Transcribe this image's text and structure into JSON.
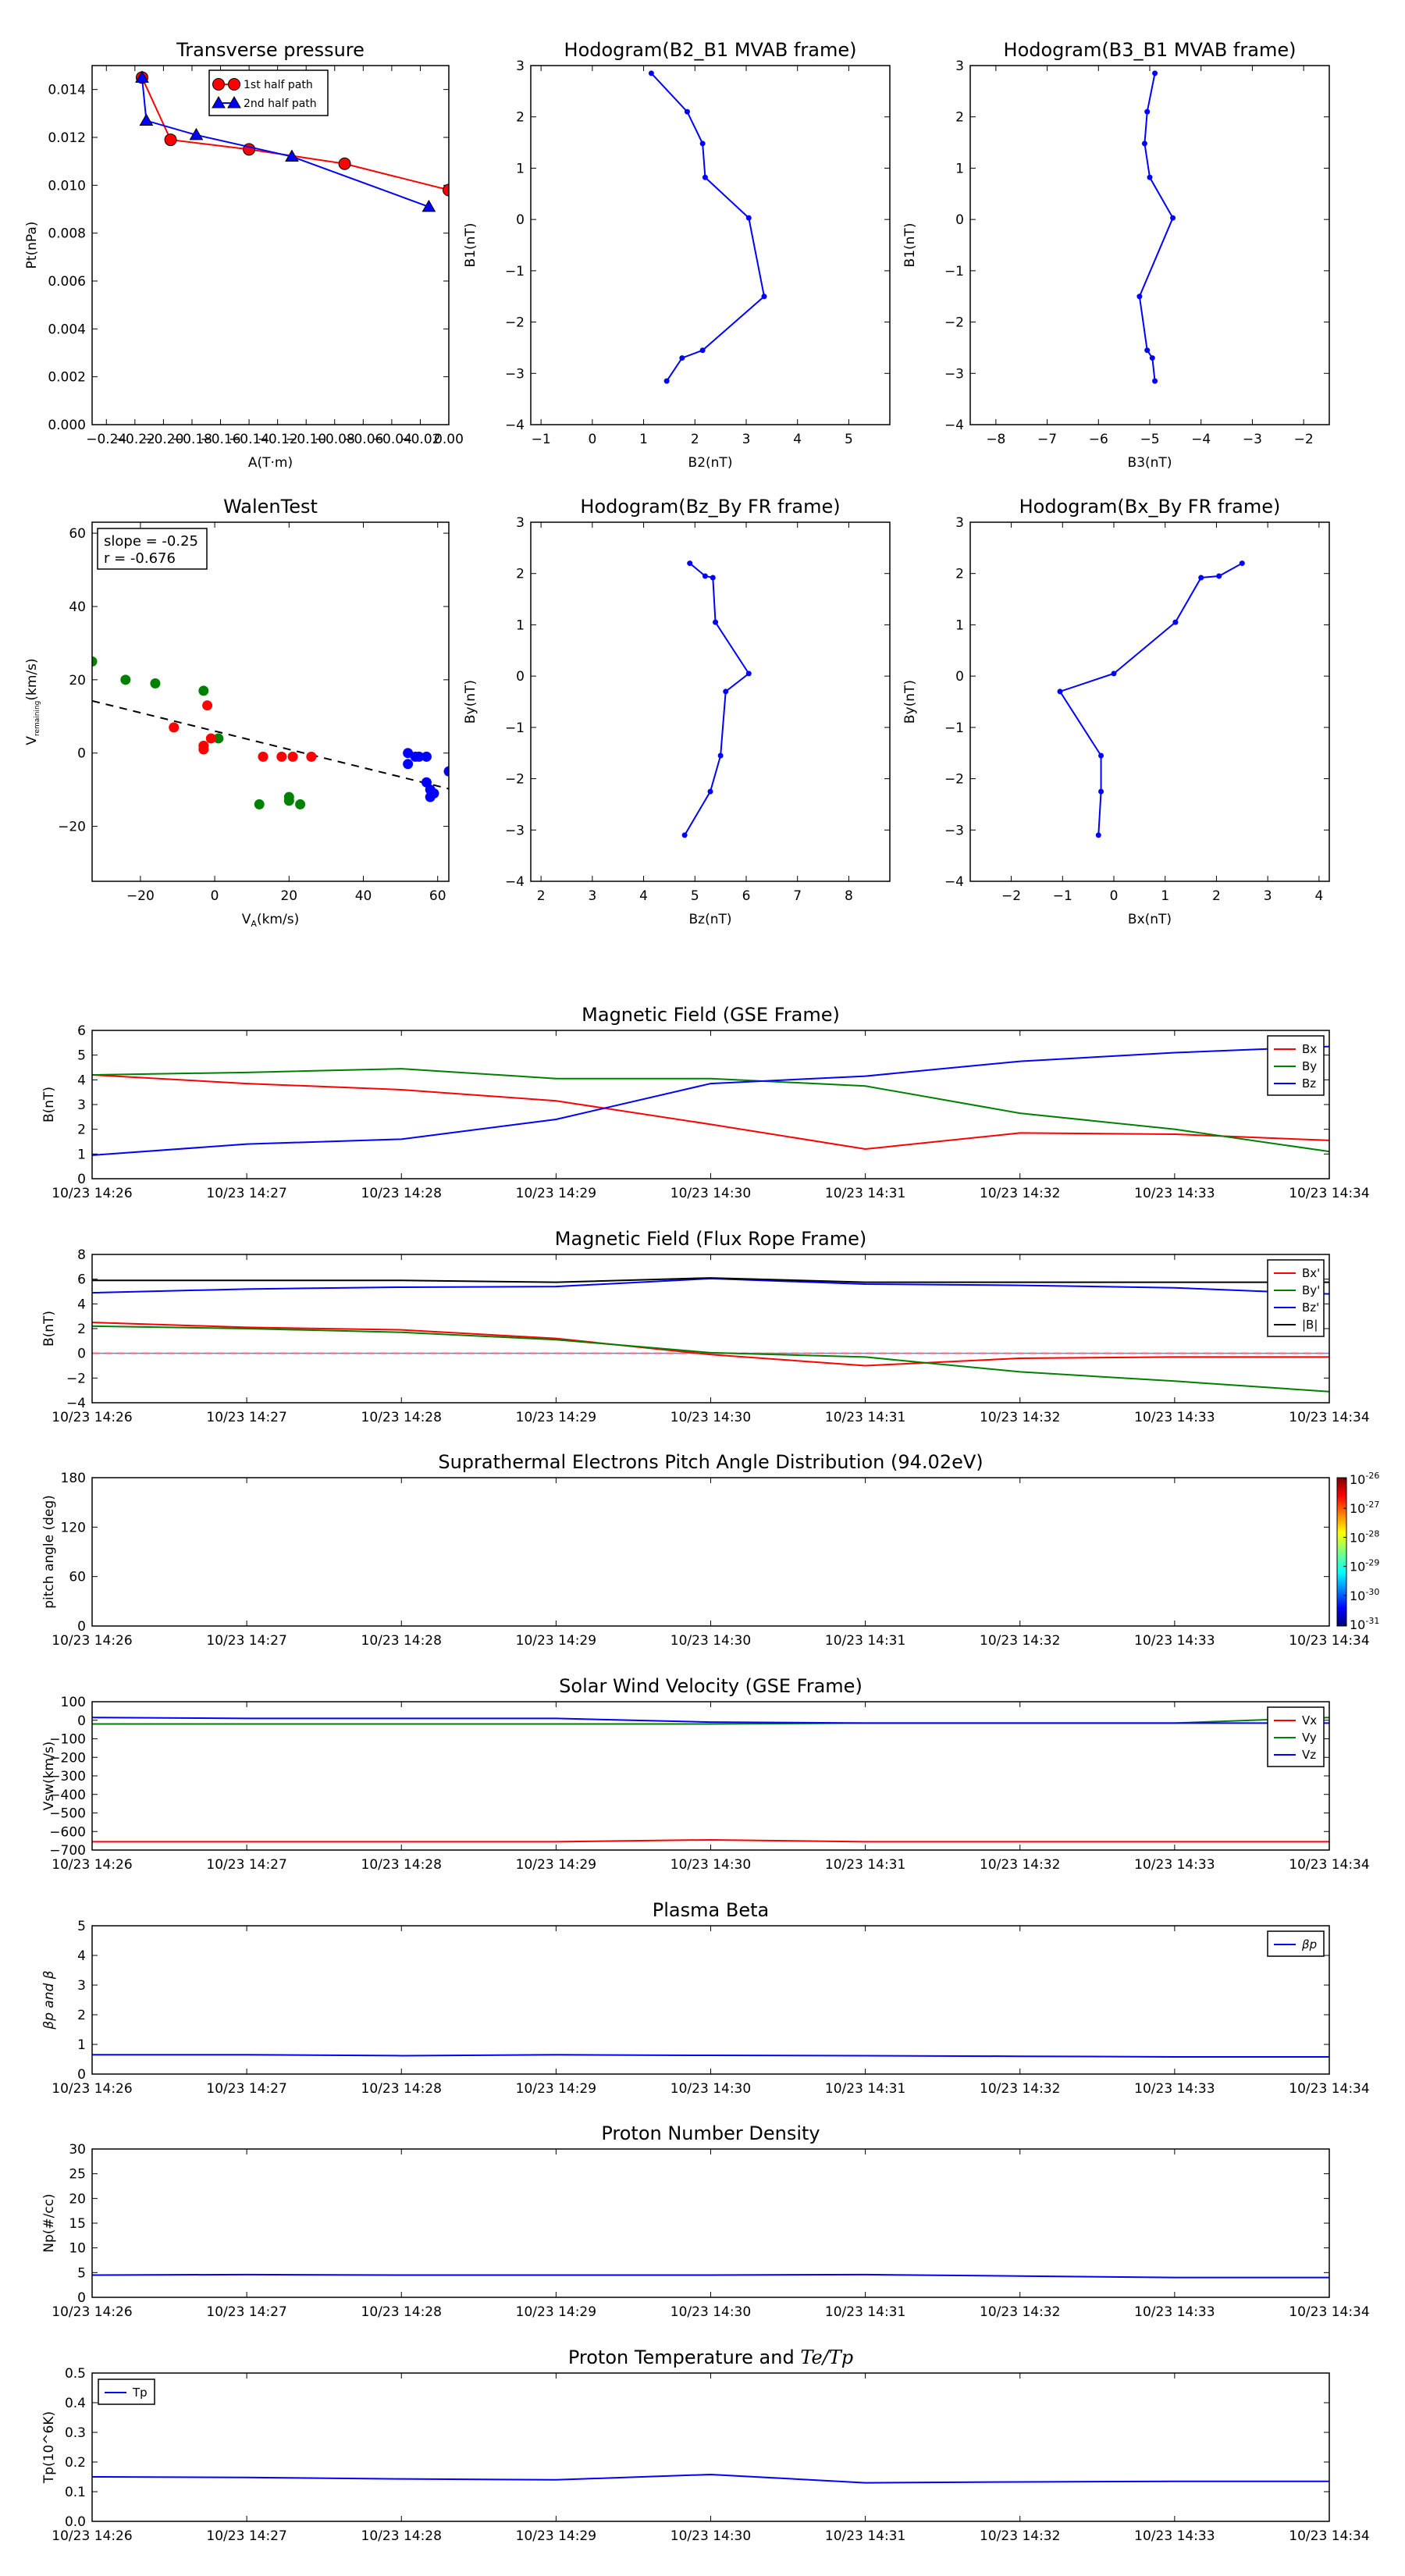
{
  "colors": {
    "red": "#ff0000",
    "green": "#008000",
    "blue": "#0000ff",
    "black": "#000000"
  },
  "time_ticks": [
    "10/23 14:26",
    "10/23 14:27",
    "10/23 14:28",
    "10/23 14:29",
    "10/23 14:30",
    "10/23 14:31",
    "10/23 14:32",
    "10/23 14:33",
    "10/23 14:34"
  ],
  "chart_data": [
    {
      "id": "transverse-pressure",
      "type": "line",
      "title": "Transverse pressure",
      "xlabel": "A(T·m)",
      "ylabel": "Pt(nPa)",
      "xlim": [
        -0.25,
        0.0
      ],
      "ylim": [
        0.0,
        0.015
      ],
      "xticks": [
        -0.24,
        -0.22,
        -0.2,
        -0.18,
        -0.16,
        -0.14,
        -0.12,
        -0.1,
        -0.08,
        -0.06,
        -0.04,
        -0.02,
        0.0
      ],
      "xtick_labels": [
        "−0.24",
        "−0.22",
        "−0.20",
        "−0.18",
        "−0.16",
        "−0.14",
        "−0.12",
        "−0.10",
        "−0.08",
        "−0.06",
        "−0.04",
        "−0.02",
        "0.00"
      ],
      "yticks": [
        0,
        0.002,
        0.004,
        0.006,
        0.008,
        0.01,
        0.012,
        0.014
      ],
      "ytick_labels": [
        "0.000",
        "0.002",
        "0.004",
        "0.006",
        "0.008",
        "0.010",
        "0.012",
        "0.014"
      ],
      "legend": {
        "placement": "top-center",
        "entries": [
          "1st half path",
          "2nd half path"
        ]
      },
      "series": [
        {
          "name": "1st half path",
          "color": "red",
          "marker": "circle",
          "x": [
            -0.215,
            -0.195,
            -0.14,
            -0.073,
            0.0
          ],
          "y": [
            0.0145,
            0.0119,
            0.0115,
            0.0109,
            0.0098
          ]
        },
        {
          "name": "2nd half path",
          "color": "blue",
          "marker": "triangle",
          "x": [
            -0.215,
            -0.212,
            -0.177,
            -0.11,
            -0.014
          ],
          "y": [
            0.0145,
            0.0127,
            0.0121,
            0.0112,
            0.0091
          ]
        }
      ]
    },
    {
      "id": "hodogram-b2-b1",
      "type": "line",
      "title": "Hodogram(B2_B1 MVAB frame)",
      "xlabel": "B2(nT)",
      "ylabel": "B1(nT)",
      "xlim": [
        -1.2,
        5.8
      ],
      "ylim": [
        -4,
        3
      ],
      "xticks": [
        -1,
        0,
        1,
        2,
        3,
        4,
        5
      ],
      "xtick_labels": [
        "−1",
        "0",
        "1",
        "2",
        "3",
        "4",
        "5"
      ],
      "yticks": [
        -4,
        -3,
        -2,
        -1,
        0,
        1,
        2,
        3
      ],
      "ytick_labels": [
        "−4",
        "−3",
        "−2",
        "−1",
        "0",
        "1",
        "2",
        "3"
      ],
      "series": [
        {
          "color": "blue",
          "marker": "dot",
          "x": [
            1.15,
            1.85,
            2.15,
            2.2,
            3.05,
            3.35,
            2.15,
            1.75,
            1.45
          ],
          "y": [
            2.85,
            2.1,
            1.48,
            0.82,
            0.03,
            -1.5,
            -2.55,
            -2.7,
            -3.15
          ]
        }
      ]
    },
    {
      "id": "hodogram-b3-b1",
      "type": "line",
      "title": "Hodogram(B3_B1 MVAB frame)",
      "xlabel": "B3(nT)",
      "ylabel": "B1(nT)",
      "xlim": [
        -8.5,
        -1.5
      ],
      "ylim": [
        -4,
        3
      ],
      "xticks": [
        -8,
        -7,
        -6,
        -5,
        -4,
        -3,
        -2
      ],
      "xtick_labels": [
        "−8",
        "−7",
        "−6",
        "−5",
        "−4",
        "−3",
        "−2"
      ],
      "yticks": [
        -4,
        -3,
        -2,
        -1,
        0,
        1,
        2,
        3
      ],
      "ytick_labels": [
        "−4",
        "−3",
        "−2",
        "−1",
        "0",
        "1",
        "2",
        "3"
      ],
      "series": [
        {
          "color": "blue",
          "marker": "dot",
          "x": [
            -4.9,
            -5.05,
            -5.1,
            -5.0,
            -4.55,
            -5.2,
            -5.05,
            -4.95,
            -4.9
          ],
          "y": [
            2.85,
            2.1,
            1.48,
            0.82,
            0.03,
            -1.5,
            -2.55,
            -2.7,
            -3.15
          ]
        }
      ]
    },
    {
      "id": "walen-test",
      "type": "scatter",
      "title": "WalenTest",
      "xlabel": "V",
      "xlabel_sub": "A",
      "xlabel_unit": "(km/s)",
      "ylabel": "V",
      "ylabel_sub": "remaining",
      "ylabel_unit": "(km/s)",
      "xlim": [
        -33,
        63
      ],
      "ylim": [
        -35,
        63
      ],
      "xticks": [
        -20,
        0,
        20,
        40,
        60
      ],
      "xtick_labels": [
        "−20",
        "0",
        "20",
        "40",
        "60"
      ],
      "yticks": [
        -20,
        0,
        20,
        40,
        60
      ],
      "ytick_labels": [
        "−20",
        "0",
        "20",
        "40",
        "60"
      ],
      "annotation": [
        "slope = -0.25",
        "r = -0.676"
      ],
      "fit_line": {
        "slope": -0.25,
        "intercept": 6.0
      },
      "series": [
        {
          "color": "green",
          "x": [
            -33,
            -24,
            -16,
            -3,
            1,
            12,
            20,
            20,
            23
          ],
          "y": [
            25,
            20,
            19,
            17,
            4,
            -14,
            -12,
            -13,
            -14
          ]
        },
        {
          "color": "red",
          "x": [
            -11,
            -3,
            -3,
            -1,
            13,
            18,
            21,
            26,
            -2
          ],
          "y": [
            7,
            1,
            2,
            4,
            -1,
            -1,
            -1,
            -1,
            13
          ]
        },
        {
          "color": "blue",
          "x": [
            52,
            52,
            54,
            55,
            57,
            57,
            58,
            58,
            59,
            63
          ],
          "y": [
            0,
            -3,
            -1,
            -1,
            -1,
            -8,
            -10,
            -12,
            -11,
            -5
          ]
        }
      ]
    },
    {
      "id": "hodogram-bz-by",
      "type": "line",
      "title": "Hodogram(Bz_By FR frame)",
      "xlabel": "Bz(nT)",
      "ylabel": "By(nT)",
      "xlim": [
        1.8,
        8.8
      ],
      "ylim": [
        -4,
        3
      ],
      "xticks": [
        2,
        3,
        4,
        5,
        6,
        7,
        8
      ],
      "xtick_labels": [
        "2",
        "3",
        "4",
        "5",
        "6",
        "7",
        "8"
      ],
      "yticks": [
        -4,
        -3,
        -2,
        -1,
        0,
        1,
        2,
        3
      ],
      "ytick_labels": [
        "−4",
        "−3",
        "−2",
        "−1",
        "0",
        "1",
        "2",
        "3"
      ],
      "series": [
        {
          "color": "blue",
          "marker": "dot",
          "x": [
            4.9,
            5.2,
            5.35,
            5.4,
            6.05,
            5.6,
            5.5,
            5.3,
            4.8
          ],
          "y": [
            2.2,
            1.95,
            1.92,
            1.05,
            0.05,
            -0.3,
            -1.55,
            -2.25,
            -3.1
          ]
        }
      ]
    },
    {
      "id": "hodogram-bx-by",
      "type": "line",
      "title": "Hodogram(Bx_By FR frame)",
      "xlabel": "Bx(nT)",
      "ylabel": "By(nT)",
      "xlim": [
        -2.8,
        4.2
      ],
      "ylim": [
        -4,
        3
      ],
      "xticks": [
        -2,
        -1,
        0,
        1,
        2,
        3,
        4
      ],
      "xtick_labels": [
        "−2",
        "−1",
        "0",
        "1",
        "2",
        "3",
        "4"
      ],
      "yticks": [
        -4,
        -3,
        -2,
        -1,
        0,
        1,
        2,
        3
      ],
      "ytick_labels": [
        "−4",
        "−3",
        "−2",
        "−1",
        "0",
        "1",
        "2",
        "3"
      ],
      "series": [
        {
          "color": "blue",
          "marker": "dot",
          "x": [
            2.5,
            2.05,
            1.7,
            1.2,
            0.0,
            -1.05,
            -0.25,
            -0.25,
            -0.3
          ],
          "y": [
            2.2,
            1.95,
            1.92,
            1.05,
            0.05,
            -0.3,
            -1.55,
            -2.25,
            -3.1
          ]
        }
      ]
    },
    {
      "id": "magnetic-field-gse",
      "type": "line",
      "title": "Magnetic Field (GSE Frame)",
      "ylabel": "B(nT)",
      "xlim": [
        0,
        8
      ],
      "ylim": [
        0,
        6
      ],
      "yticks": [
        0,
        1,
        2,
        3,
        4,
        5,
        6
      ],
      "ytick_labels": [
        "0",
        "1",
        "2",
        "3",
        "4",
        "5",
        "6"
      ],
      "legend": {
        "placement": "top-right",
        "entries": [
          "Bx",
          "By",
          "Bz"
        ]
      },
      "series": [
        {
          "name": "Bx",
          "color": "red",
          "x": [
            0,
            1,
            2,
            3,
            4,
            5,
            6,
            7,
            8
          ],
          "y": [
            4.2,
            3.85,
            3.6,
            3.15,
            2.2,
            1.2,
            1.85,
            1.8,
            1.55
          ]
        },
        {
          "name": "By",
          "color": "green",
          "x": [
            0,
            1,
            2,
            3,
            4,
            5,
            6,
            7,
            8
          ],
          "y": [
            4.2,
            4.3,
            4.45,
            4.05,
            4.05,
            3.75,
            2.65,
            2.0,
            1.1
          ]
        },
        {
          "name": "Bz",
          "color": "blue",
          "x": [
            0,
            1,
            2,
            3,
            4,
            5,
            6,
            7,
            8
          ],
          "y": [
            0.95,
            1.4,
            1.6,
            2.4,
            3.85,
            4.15,
            4.75,
            5.1,
            5.35
          ]
        }
      ]
    },
    {
      "id": "magnetic-field-fr",
      "type": "line",
      "title": "Magnetic Field (Flux Rope Frame)",
      "ylabel": "B(nT)",
      "xlim": [
        0,
        8
      ],
      "ylim": [
        -4,
        8
      ],
      "yticks": [
        -4,
        -2,
        0,
        2,
        4,
        6,
        8
      ],
      "ytick_labels": [
        "−4",
        "−2",
        "0",
        "2",
        "4",
        "6",
        "8"
      ],
      "legend": {
        "placement": "top-right",
        "entries": [
          "Bx'",
          "By'",
          "Bz'",
          "|B|"
        ]
      },
      "series": [
        {
          "name": "Bx'",
          "color": "red",
          "x": [
            0,
            1,
            2,
            3,
            4,
            5,
            6,
            7,
            8
          ],
          "y": [
            2.5,
            2.1,
            1.9,
            1.2,
            -0.1,
            -1.0,
            -0.4,
            -0.3,
            -0.3
          ]
        },
        {
          "name": "By'",
          "color": "green",
          "x": [
            0,
            1,
            2,
            3,
            4,
            5,
            6,
            7,
            8
          ],
          "y": [
            2.2,
            2.0,
            1.7,
            1.1,
            0.05,
            -0.3,
            -1.5,
            -2.25,
            -3.1
          ]
        },
        {
          "name": "Bz'",
          "color": "blue",
          "x": [
            0,
            1,
            2,
            3,
            4,
            5,
            6,
            7,
            8
          ],
          "y": [
            4.9,
            5.2,
            5.35,
            5.4,
            6.05,
            5.6,
            5.5,
            5.3,
            4.8
          ]
        },
        {
          "name": "|B|",
          "color": "black",
          "x": [
            0,
            1,
            2,
            3,
            4,
            5,
            6,
            7,
            8
          ],
          "y": [
            5.9,
            5.9,
            5.9,
            5.75,
            6.1,
            5.75,
            5.75,
            5.75,
            5.75
          ]
        }
      ]
    },
    {
      "id": "pitch-angle",
      "type": "heatmap",
      "title": "Suprathermal Electrons Pitch Angle Distribution (94.02eV)",
      "ylabel": "pitch angle (deg)",
      "xlim": [
        0,
        8
      ],
      "ylim": [
        0,
        180
      ],
      "yticks": [
        0,
        60,
        120,
        180
      ],
      "ytick_labels": [
        "0",
        "60",
        "120",
        "180"
      ],
      "colorbar": {
        "labels": [
          "10-26",
          "10-27",
          "10-28",
          "10-29",
          "10-30",
          "10-31"
        ],
        "base": "10",
        "exponents": [
          "-26",
          "-27",
          "-28",
          "-29",
          "-30",
          "-31"
        ]
      },
      "series": []
    },
    {
      "id": "solar-wind-velocity",
      "type": "line",
      "title": "Solar Wind Velocity (GSE Frame)",
      "ylabel": "Vsw(km/s)",
      "xlim": [
        0,
        8
      ],
      "ylim": [
        -700,
        100
      ],
      "yticks": [
        -700,
        -600,
        -500,
        -400,
        -300,
        -200,
        -100,
        0,
        100
      ],
      "ytick_labels": [
        "−700",
        "−600",
        "−500",
        "−400",
        "−300",
        "−200",
        "−100",
        "0",
        "100"
      ],
      "legend": {
        "placement": "top-right",
        "entries": [
          "Vx",
          "Vy",
          "Vz"
        ]
      },
      "series": [
        {
          "name": "Vx",
          "color": "red",
          "x": [
            0,
            1,
            2,
            3,
            4,
            5,
            6,
            7,
            8
          ],
          "y": [
            -655,
            -655,
            -655,
            -655,
            -645,
            -655,
            -655,
            -655,
            -655
          ]
        },
        {
          "name": "Vy",
          "color": "green",
          "x": [
            0,
            1,
            2,
            3,
            4,
            5,
            6,
            7,
            8
          ],
          "y": [
            -20,
            -20,
            -20,
            -20,
            -20,
            -15,
            -15,
            -15,
            15
          ]
        },
        {
          "name": "Vz",
          "color": "blue",
          "x": [
            0,
            1,
            2,
            3,
            4,
            5,
            6,
            7,
            8
          ],
          "y": [
            15,
            10,
            10,
            10,
            -10,
            -15,
            -15,
            -15,
            -15
          ]
        }
      ]
    },
    {
      "id": "plasma-beta",
      "type": "line",
      "title": "Plasma Beta",
      "ylabel": "βp and β",
      "xlim": [
        0,
        8
      ],
      "ylim": [
        0,
        5
      ],
      "yticks": [
        0,
        1,
        2,
        3,
        4,
        5
      ],
      "ytick_labels": [
        "0",
        "1",
        "2",
        "3",
        "4",
        "5"
      ],
      "legend": {
        "placement": "top-right",
        "entries": [
          "βp"
        ]
      },
      "series": [
        {
          "name": "βp",
          "color": "blue",
          "x": [
            0,
            1,
            2,
            3,
            4,
            5,
            6,
            7,
            8
          ],
          "y": [
            0.65,
            0.65,
            0.62,
            0.65,
            0.63,
            0.62,
            0.6,
            0.58,
            0.58
          ]
        }
      ]
    },
    {
      "id": "proton-density",
      "type": "line",
      "title": "Proton Number Density",
      "ylabel": "Np(#/cc)",
      "xlim": [
        0,
        8
      ],
      "ylim": [
        0,
        30
      ],
      "yticks": [
        0,
        5,
        10,
        15,
        20,
        25,
        30
      ],
      "ytick_labels": [
        "0",
        "5",
        "10",
        "15",
        "20",
        "25",
        "30"
      ],
      "series": [
        {
          "color": "blue",
          "x": [
            0,
            1,
            2,
            3,
            4,
            5,
            6,
            7,
            8
          ],
          "y": [
            4.5,
            4.6,
            4.5,
            4.5,
            4.5,
            4.6,
            4.3,
            4.0,
            4.0
          ]
        }
      ]
    },
    {
      "id": "proton-temperature",
      "type": "line",
      "title": "Proton Temperature and Te/Tp",
      "title_main": "Proton Temperature and ",
      "title_math": "Te/Tp",
      "ylabel": "Tp(10^6K)",
      "xlim": [
        0,
        8
      ],
      "ylim": [
        0,
        0.5
      ],
      "yticks": [
        0,
        0.1,
        0.2,
        0.3,
        0.4,
        0.5
      ],
      "ytick_labels": [
        "0.0",
        "0.1",
        "0.2",
        "0.3",
        "0.4",
        "0.5"
      ],
      "legend": {
        "placement": "top-left",
        "entries": [
          "Tp"
        ]
      },
      "series": [
        {
          "name": "Tp",
          "color": "blue",
          "x": [
            0,
            1,
            2,
            3,
            4,
            5,
            6,
            7,
            8
          ],
          "y": [
            0.15,
            0.148,
            0.143,
            0.14,
            0.158,
            0.13,
            0.133,
            0.135,
            0.135
          ]
        }
      ]
    }
  ]
}
